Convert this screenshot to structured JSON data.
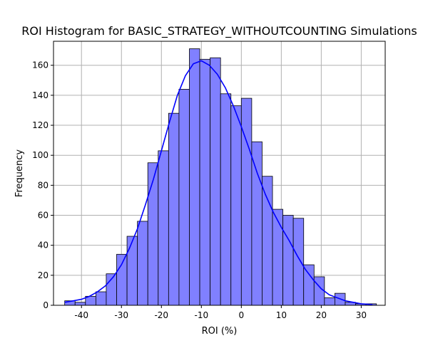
{
  "chart_data": {
    "type": "bar",
    "subtype": "histogram",
    "title": "ROI Histogram for BASIC_STRATEGY_WITHOUTCOUNTING Simulations",
    "xlabel": "ROI (%)",
    "ylabel": "Frequency",
    "xlim": [
      -47,
      36
    ],
    "ylim": [
      0,
      176
    ],
    "xticks": [
      -40,
      -30,
      -20,
      -10,
      0,
      10,
      20,
      30
    ],
    "yticks": [
      0,
      20,
      40,
      60,
      80,
      100,
      120,
      140,
      160
    ],
    "bins": {
      "edges": [
        -44.2,
        -41.6,
        -39.0,
        -36.4,
        -33.8,
        -31.2,
        -28.6,
        -26.0,
        -23.4,
        -20.8,
        -18.2,
        -15.6,
        -13.0,
        -10.4,
        -7.8,
        -5.2,
        -2.6,
        0.0,
        2.6,
        5.2,
        7.8,
        10.4,
        13.0,
        15.6,
        18.2,
        20.8,
        23.4,
        26.0,
        28.6,
        31.2,
        33.8
      ],
      "counts": [
        3,
        2,
        6,
        9,
        21,
        34,
        46,
        56,
        95,
        103,
        128,
        144,
        171,
        164,
        165,
        141,
        133,
        138,
        109,
        86,
        64,
        60,
        58,
        27,
        19,
        5,
        8,
        2,
        1,
        1
      ]
    },
    "kde": {
      "x": [
        -44.2,
        -42,
        -40,
        -38,
        -36,
        -34,
        -32,
        -30,
        -28,
        -26,
        -24,
        -22,
        -20,
        -18,
        -16,
        -14,
        -12,
        -10,
        -8,
        -6,
        -4,
        -2,
        0,
        2,
        4,
        6,
        8,
        10,
        12,
        14,
        16,
        18,
        20,
        22,
        24,
        26,
        28,
        30,
        32.8
      ],
      "y": [
        2,
        3,
        4,
        6,
        9,
        13,
        19,
        27,
        38,
        51,
        67,
        84,
        103,
        122,
        140,
        153,
        161,
        163,
        160,
        154,
        145,
        133,
        119,
        104,
        88,
        74,
        62,
        52,
        43,
        33,
        24,
        17,
        11,
        7,
        5,
        3,
        2,
        1,
        0.5
      ]
    },
    "colors": {
      "bar_fill": "#8080ff",
      "bar_edge": "#000000",
      "kde_line": "#0000ff",
      "grid": "#b0b0b0"
    },
    "grid": true
  }
}
